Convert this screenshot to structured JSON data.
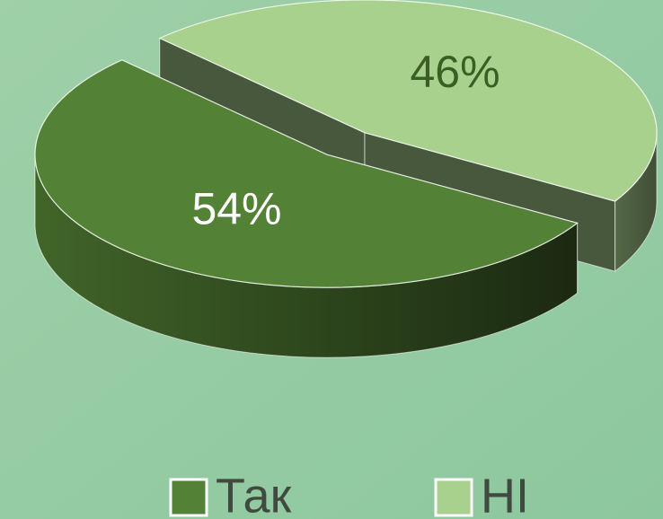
{
  "chart_data": {
    "type": "pie3d",
    "categories": [
      "Так",
      "НІ"
    ],
    "values": [
      54,
      46
    ],
    "value_labels": [
      "54%",
      "46%"
    ],
    "colors": [
      "#538135",
      "#a9d18e"
    ],
    "label_colors": [
      "#ffffff",
      "#3b5e24"
    ]
  }
}
